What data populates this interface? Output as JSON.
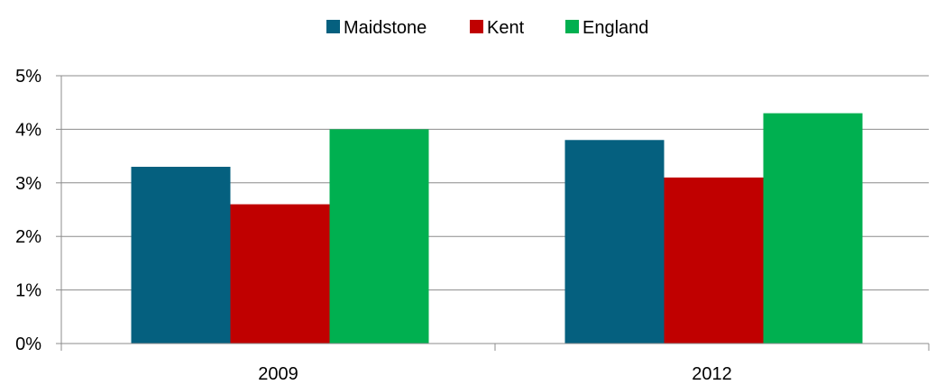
{
  "chart_data": {
    "type": "bar",
    "title": "",
    "xlabel": "",
    "ylabel": "",
    "categories": [
      "2009",
      "2012"
    ],
    "series": [
      {
        "name": "Maidstone",
        "color": "#05607f",
        "values": [
          3.3,
          3.8
        ]
      },
      {
        "name": "Kent",
        "color": "#c00000",
        "values": [
          2.6,
          3.1
        ]
      },
      {
        "name": "England",
        "color": "#00b050",
        "values": [
          4.0,
          4.3
        ]
      }
    ],
    "ylim": [
      0,
      5
    ],
    "y_ticks": [
      {
        "value": 0,
        "label": "0%"
      },
      {
        "value": 1,
        "label": "1%"
      },
      {
        "value": 2,
        "label": "2%"
      },
      {
        "value": 3,
        "label": "3%"
      },
      {
        "value": 4,
        "label": "4%"
      },
      {
        "value": 5,
        "label": "5%"
      }
    ],
    "grid": true,
    "legend_position": "top-center"
  }
}
